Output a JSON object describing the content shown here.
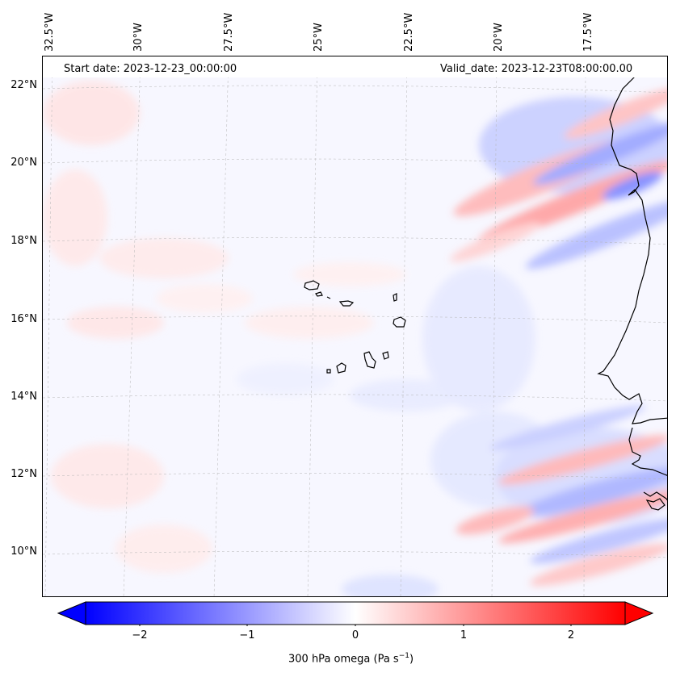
{
  "map": {
    "title_left": "Start date: 2023-12-23_00:00:00",
    "title_right": "Valid_date: 2023-12-23T08:00:00.00",
    "lon_labels": [
      "32.5°W",
      "30°W",
      "27.5°W",
      "25°W",
      "22.5°W",
      "20°W",
      "17.5°W"
    ],
    "lat_labels": [
      "22°N",
      "20°N",
      "18°N",
      "16°N",
      "14°N",
      "12°N",
      "10°N"
    ],
    "field": "300 hPa omega",
    "region": "Cape Verde islands and West African coast (Senegal)"
  },
  "colorbar": {
    "title_prefix": "300 hPa omega (Pa s",
    "title_exp": "−1",
    "title_suffix": ")",
    "ticks": [
      "−2",
      "−1",
      "0",
      "1",
      "2"
    ],
    "tick_values": [
      -2,
      -1,
      0,
      1,
      2
    ],
    "vmin": -2.5,
    "vmax": 2.5,
    "low_color": "#0000ff",
    "mid_color": "#ffffff",
    "high_color": "#ff0000"
  }
}
